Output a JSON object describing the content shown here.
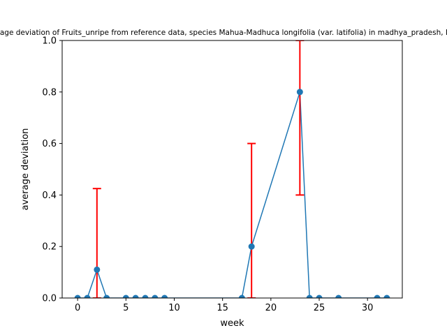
{
  "chart_data": {
    "type": "line",
    "title": "Average deviation of Fruits_unripe from reference data, species Mahua-Madhuca longifolia (var. latifolia) in madhya_pradesh, India",
    "xlabel": "week",
    "ylabel": "average deviation",
    "xlim": [
      -1.6,
      33.6
    ],
    "ylim": [
      0,
      1.0
    ],
    "xticks": [
      0,
      5,
      10,
      15,
      20,
      25,
      30
    ],
    "yticks": [
      0.0,
      0.2,
      0.4,
      0.6,
      0.8,
      1.0
    ],
    "grid": false,
    "line_color": "#1f77b4",
    "error_color": "#ff0000",
    "series": [
      {
        "x": [
          0,
          1,
          2,
          3,
          5,
          6,
          7,
          8,
          9,
          17,
          18,
          23,
          24,
          25,
          27,
          31,
          32
        ],
        "y": [
          0,
          0,
          0.11,
          0,
          0,
          0,
          0,
          0,
          0,
          0,
          0.2,
          0.8,
          0,
          0,
          0,
          0,
          0
        ]
      }
    ],
    "error_bars": [
      {
        "x": 2,
        "low": 0,
        "high": 0.425
      },
      {
        "x": 18,
        "low": 0,
        "high": 0.6
      },
      {
        "x": 23,
        "low": 0.4,
        "high": 1.0
      }
    ]
  }
}
